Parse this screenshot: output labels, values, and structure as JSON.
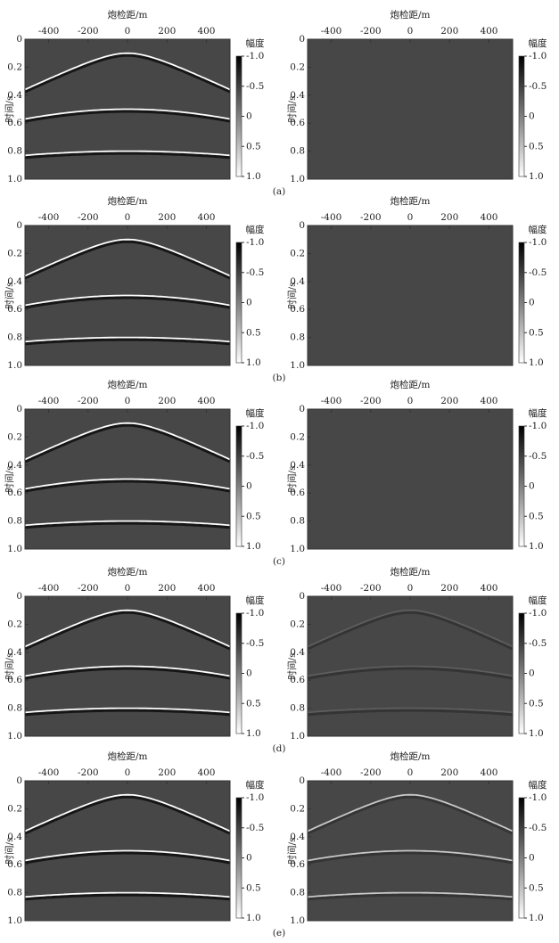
{
  "captions": [
    "(a)",
    "(b)",
    "(c)",
    "(d)",
    "(e)"
  ],
  "chart_data": [
    {
      "type": "image",
      "xlabel": "炮检距/m",
      "ylabel": "时间/s",
      "colorbar_label": "幅度",
      "xlim": [
        -520,
        520
      ],
      "xticks": [
        -400,
        -200,
        0,
        200,
        400
      ],
      "ylim": [
        0,
        1
      ],
      "invert_y": true,
      "yticks": [
        0,
        0.2,
        0.4,
        0.6,
        0.8,
        {
          "value": 1,
          "label": "1.0"
        }
      ],
      "clim": [
        -1,
        1
      ],
      "cticks": [
        {
          "value": -1,
          "label": "-1.0"
        },
        -0.5,
        0,
        0.5,
        {
          "value": 1,
          "label": "1.0"
        }
      ],
      "background": "#474747",
      "event_color": "#ffffff",
      "events": [
        {
          "t0": 0.1,
          "t_edge": 0.36
        },
        {
          "t0": 0.5,
          "t_edge": 0.57
        },
        {
          "t0": 0.8,
          "t_edge": 0.83
        }
      ]
    },
    {
      "type": "image",
      "xlabel": "炮检距/m",
      "ylabel": "时间/s",
      "colorbar_label": "幅度",
      "xlim": [
        -520,
        520
      ],
      "xticks": [
        -400,
        -200,
        0,
        200,
        400
      ],
      "ylim": [
        0,
        1
      ],
      "invert_y": true,
      "yticks": [
        0,
        0.2,
        0.4,
        0.6,
        0.8,
        {
          "value": 1,
          "label": "1.0"
        }
      ],
      "clim": [
        -1,
        1
      ],
      "cticks": [
        {
          "value": -1,
          "label": "-1.0"
        },
        -0.5,
        0,
        0.5,
        {
          "value": 1,
          "label": "1.0"
        }
      ],
      "background": "#474747",
      "event_color": "#474747",
      "events": []
    },
    {
      "type": "image",
      "xlabel": "炮检距/m",
      "ylabel": "时间/s",
      "colorbar_label": "幅度",
      "xlim": [
        -520,
        520
      ],
      "xticks": [
        -400,
        -200,
        0,
        200,
        400
      ],
      "ylim": [
        0,
        1
      ],
      "invert_y": true,
      "yticks": [
        0,
        0.2,
        0.4,
        0.6,
        0.8,
        {
          "value": 1,
          "label": "1.0"
        }
      ],
      "clim": [
        -1,
        1
      ],
      "cticks": [
        {
          "value": -1,
          "label": "-1.0"
        },
        -0.5,
        0,
        0.5,
        {
          "value": 1,
          "label": "1.0"
        }
      ],
      "background": "#474747",
      "event_color": "#ffffff",
      "events": [
        {
          "t0": 0.1,
          "t_edge": 0.36
        },
        {
          "t0": 0.5,
          "t_edge": 0.57
        },
        {
          "t0": 0.8,
          "t_edge": 0.83
        }
      ]
    },
    {
      "type": "image",
      "xlabel": "炮检距/m",
      "ylabel": "时间/s",
      "colorbar_label": "幅度",
      "xlim": [
        -520,
        520
      ],
      "xticks": [
        -400,
        -200,
        0,
        200,
        400
      ],
      "ylim": [
        0,
        1
      ],
      "invert_y": true,
      "yticks": [
        0,
        0.2,
        0.4,
        0.6,
        0.8,
        {
          "value": 1,
          "label": "1.0"
        }
      ],
      "clim": [
        -1,
        1
      ],
      "cticks": [
        {
          "value": -1,
          "label": "-1.0"
        },
        -0.5,
        0,
        0.5,
        {
          "value": 1,
          "label": "1.0"
        }
      ],
      "background": "#474747",
      "event_color": "#474747",
      "events": []
    },
    {
      "type": "image",
      "xlabel": "炮检距/m",
      "ylabel": "时间/s",
      "colorbar_label": "幅度",
      "xlim": [
        -520,
        520
      ],
      "xticks": [
        -400,
        -200,
        0,
        200,
        400
      ],
      "ylim": [
        0,
        1
      ],
      "invert_y": true,
      "yticks": [
        0,
        0.2,
        0.4,
        0.6,
        0.8,
        {
          "value": 1,
          "label": "1.0"
        }
      ],
      "clim": [
        -1,
        1
      ],
      "cticks": [
        {
          "value": -1,
          "label": "-1.0"
        },
        -0.5,
        0,
        0.5,
        {
          "value": 1,
          "label": "1.0"
        }
      ],
      "background": "#474747",
      "event_color": "#ffffff",
      "events": [
        {
          "t0": 0.1,
          "t_edge": 0.36
        },
        {
          "t0": 0.5,
          "t_edge": 0.57
        },
        {
          "t0": 0.8,
          "t_edge": 0.83
        }
      ]
    },
    {
      "type": "image",
      "xlabel": "炮检距/m",
      "ylabel": "时间/s",
      "colorbar_label": "幅度",
      "xlim": [
        -520,
        520
      ],
      "xticks": [
        -400,
        -200,
        0,
        200,
        400
      ],
      "ylim": [
        0,
        1
      ],
      "invert_y": true,
      "yticks": [
        0,
        0.2,
        0.4,
        0.6,
        0.8,
        {
          "value": 1,
          "label": "1.0"
        }
      ],
      "clim": [
        -1,
        1
      ],
      "cticks": [
        {
          "value": -1,
          "label": "-1.0"
        },
        -0.5,
        0,
        0.5,
        {
          "value": 1,
          "label": "1.0"
        }
      ],
      "background": "#474747",
      "event_color": "#474747",
      "events": []
    },
    {
      "type": "image",
      "xlabel": "炮检距/m",
      "ylabel": "时间/s",
      "colorbar_label": "幅度",
      "xlim": [
        -520,
        520
      ],
      "xticks": [
        -400,
        -200,
        0,
        200,
        400
      ],
      "ylim": [
        0,
        1
      ],
      "invert_y": true,
      "yticks": [
        0,
        0.2,
        0.4,
        0.6,
        0.8,
        {
          "value": 1,
          "label": "1.0"
        }
      ],
      "clim": [
        -1,
        1
      ],
      "cticks": [
        {
          "value": -1,
          "label": "-1.0"
        },
        -0.5,
        0,
        0.5,
        {
          "value": 1,
          "label": "1.0"
        }
      ],
      "background": "#474747",
      "event_color": "#ffffff",
      "events": [
        {
          "t0": 0.1,
          "t_edge": 0.36
        },
        {
          "t0": 0.5,
          "t_edge": 0.57
        },
        {
          "t0": 0.8,
          "t_edge": 0.83
        }
      ]
    },
    {
      "type": "image",
      "xlabel": "炮检距/m",
      "ylabel": "时间/s",
      "colorbar_label": "幅度",
      "xlim": [
        -520,
        520
      ],
      "xticks": [
        -400,
        -200,
        0,
        200,
        400
      ],
      "ylim": [
        0,
        1
      ],
      "invert_y": true,
      "yticks": [
        0,
        0.2,
        0.4,
        0.6,
        0.8,
        {
          "value": 1,
          "label": "1.0"
        }
      ],
      "clim": [
        -1,
        1
      ],
      "cticks": [
        {
          "value": -1,
          "label": "-1.0"
        },
        -0.5,
        0,
        0.5,
        {
          "value": 1,
          "label": "1.0"
        }
      ],
      "background": "#474747",
      "event_color": "#5e5e5e",
      "events": [
        {
          "t0": 0.1,
          "t_edge": 0.36
        },
        {
          "t0": 0.5,
          "t_edge": 0.57
        },
        {
          "t0": 0.8,
          "t_edge": 0.83
        }
      ]
    },
    {
      "type": "image",
      "xlabel": "炮检距/m",
      "ylabel": "时间/s",
      "colorbar_label": "幅度",
      "xlim": [
        -520,
        520
      ],
      "xticks": [
        -400,
        -200,
        0,
        200,
        400
      ],
      "ylim": [
        0,
        1
      ],
      "invert_y": true,
      "yticks": [
        0,
        0.2,
        0.4,
        0.6,
        0.8,
        {
          "value": 1,
          "label": "1.0"
        }
      ],
      "clim": [
        -1,
        1
      ],
      "cticks": [
        {
          "value": -1,
          "label": "-1.0"
        },
        -0.5,
        0,
        0.5,
        {
          "value": 1,
          "label": "1.0"
        }
      ],
      "background": "#474747",
      "event_color": "#ffffff",
      "events": [
        {
          "t0": 0.1,
          "t_edge": 0.36
        },
        {
          "t0": 0.5,
          "t_edge": 0.57
        },
        {
          "t0": 0.8,
          "t_edge": 0.83
        }
      ]
    },
    {
      "type": "image",
      "xlabel": "炮检距/m",
      "ylabel": "时间/s",
      "colorbar_label": "幅度",
      "xlim": [
        -520,
        520
      ],
      "xticks": [
        -400,
        -200,
        0,
        200,
        400
      ],
      "ylim": [
        0,
        1
      ],
      "invert_y": true,
      "yticks": [
        0,
        0.2,
        0.4,
        0.6,
        0.8,
        {
          "value": 1,
          "label": "1.0"
        }
      ],
      "clim": [
        -1,
        1
      ],
      "cticks": [
        {
          "value": -1,
          "label": "-1.0"
        },
        -0.5,
        0,
        0.5,
        {
          "value": 1,
          "label": "1.0"
        }
      ],
      "background": "#474747",
      "event_color": "#c8c8c8",
      "events": [
        {
          "t0": 0.1,
          "t_edge": 0.36
        },
        {
          "t0": 0.5,
          "t_edge": 0.57
        },
        {
          "t0": 0.8,
          "t_edge": 0.83
        }
      ]
    }
  ]
}
